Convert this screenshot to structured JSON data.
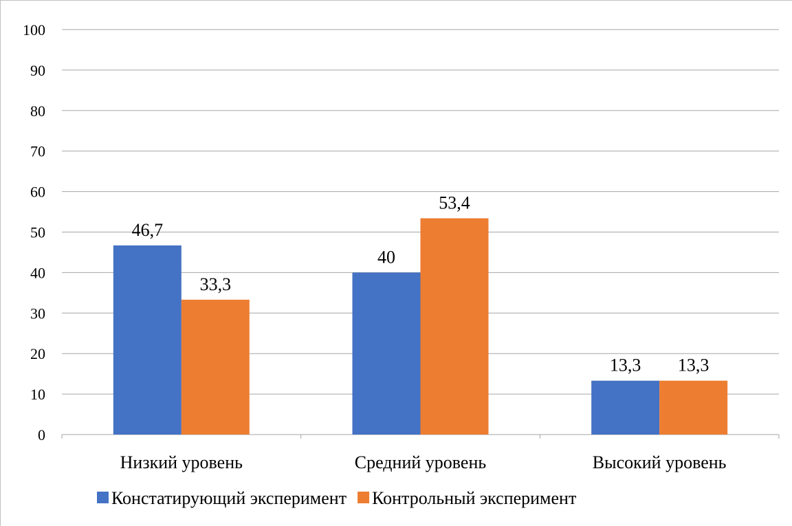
{
  "chart_data": {
    "type": "bar",
    "categories": [
      "Низкий уровень",
      "Средний уровень",
      "Высокий уровень"
    ],
    "series": [
      {
        "name": "Констатирующий эксперимент",
        "values": [
          46.7,
          40,
          13.3
        ],
        "labels": [
          "46,7",
          "40",
          "13,3"
        ],
        "color": "#4472C4"
      },
      {
        "name": "Контрольный эксперимент",
        "values": [
          33.3,
          53.4,
          13.3
        ],
        "labels": [
          "33,3",
          "53,4",
          "13,3"
        ],
        "color": "#ED7D31"
      }
    ],
    "ylim": [
      0,
      100
    ],
    "yticks": [
      0,
      10,
      20,
      30,
      40,
      50,
      60,
      70,
      80,
      90,
      100
    ],
    "title": "",
    "xlabel": "",
    "ylabel": "",
    "grid": true,
    "legend_position": "bottom"
  }
}
